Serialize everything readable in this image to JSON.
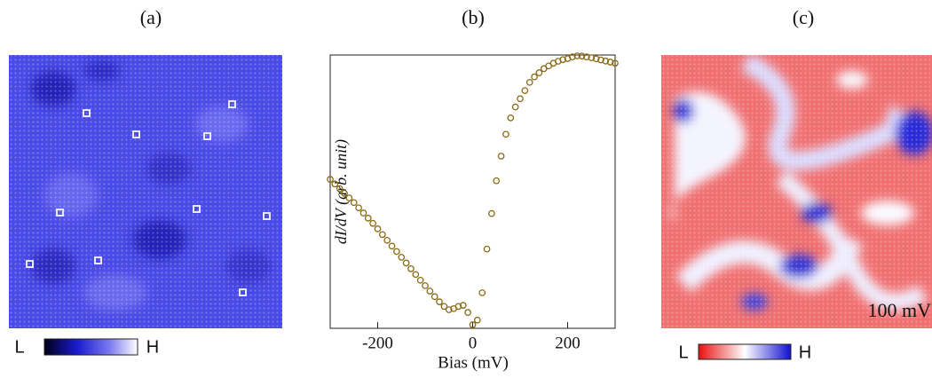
{
  "panels": {
    "a": {
      "label": "(a)",
      "colorbar_low": "L",
      "colorbar_high": "H"
    },
    "c": {
      "label": "(c)",
      "colorbar_low": "L",
      "colorbar_high": "H",
      "annotation": "100 mV"
    }
  },
  "chart_data": {
    "type": "scatter",
    "title": "(b)",
    "xlabel": "Bias (mV)",
    "ylabel": "dI/dV (arb. unit)",
    "xlim": [
      -300,
      300
    ],
    "xticks": [
      -200,
      0,
      200
    ],
    "ylim": [
      0,
      1
    ],
    "series": [
      {
        "color": "#8a6a12",
        "x": [
          -300,
          -290,
          -280,
          -270,
          -260,
          -250,
          -240,
          -230,
          -220,
          -210,
          -200,
          -190,
          -180,
          -170,
          -160,
          -150,
          -140,
          -130,
          -120,
          -110,
          -100,
          -90,
          -80,
          -70,
          -60,
          -50,
          -40,
          -30,
          -20,
          -10,
          0,
          10,
          20,
          30,
          40,
          50,
          60,
          70,
          80,
          90,
          100,
          110,
          120,
          130,
          140,
          150,
          160,
          170,
          180,
          190,
          200,
          210,
          220,
          230,
          240,
          250,
          260,
          270,
          280,
          290,
          300
        ],
        "values": [
          0.545,
          0.528,
          0.511,
          0.494,
          0.477,
          0.46,
          0.441,
          0.422,
          0.403,
          0.384,
          0.364,
          0.343,
          0.322,
          0.301,
          0.281,
          0.26,
          0.239,
          0.218,
          0.197,
          0.176,
          0.156,
          0.136,
          0.116,
          0.097,
          0.08,
          0.068,
          0.072,
          0.08,
          0.084,
          0.058,
          0.013,
          0.03,
          0.13,
          0.29,
          0.42,
          0.54,
          0.63,
          0.71,
          0.77,
          0.81,
          0.84,
          0.87,
          0.9,
          0.92,
          0.935,
          0.95,
          0.96,
          0.97,
          0.977,
          0.983,
          0.987,
          0.993,
          0.997,
          0.996,
          0.993,
          0.99,
          0.986,
          0.982,
          0.978,
          0.974,
          0.97
        ]
      }
    ]
  }
}
